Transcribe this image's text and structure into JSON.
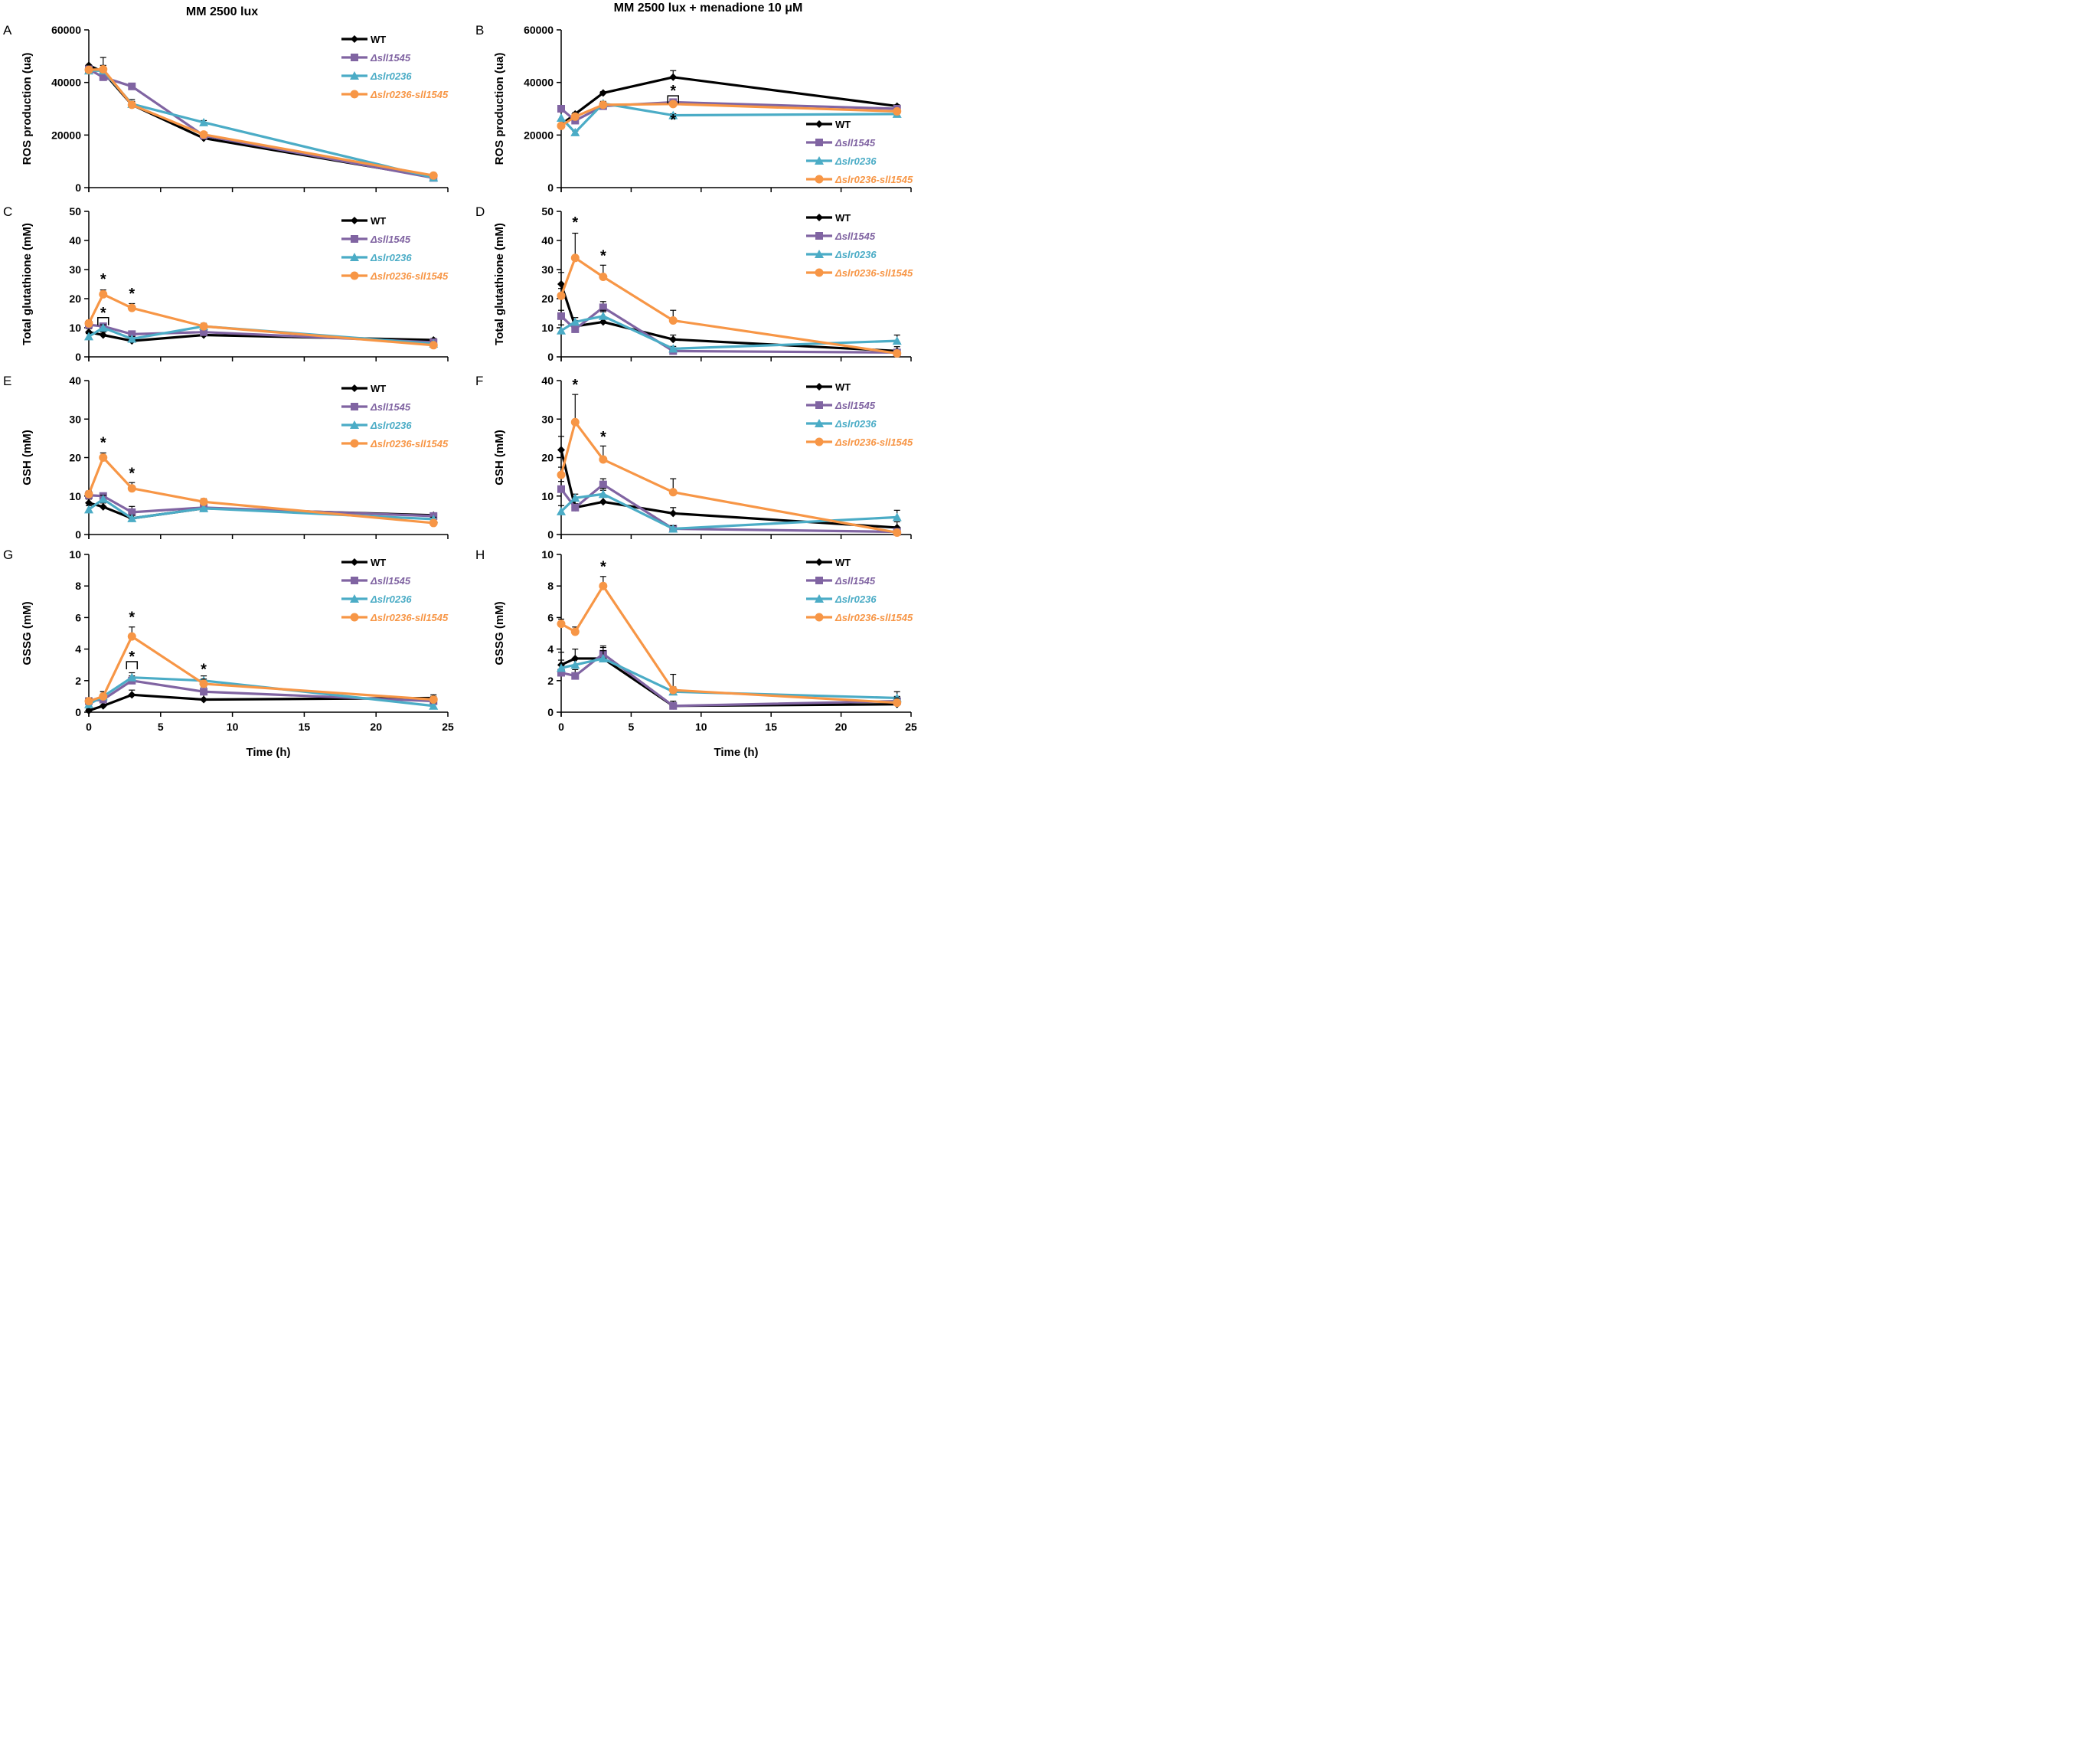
{
  "figure": {
    "column_titles": [
      "MM 2500 lux",
      "MM 2500 lux + menadione 10 μM"
    ],
    "x_axis_label": "Time (h)",
    "series_styles": [
      {
        "name": "WT",
        "color": "#000000",
        "marker": "diamond"
      },
      {
        "name": "Δsll1545",
        "color": "#8064A2",
        "marker": "square"
      },
      {
        "name": "Δslr0236",
        "color": "#4BACC6",
        "marker": "triangle"
      },
      {
        "name": "Δslr0236-sll1545",
        "color": "#F79646",
        "marker": "circle"
      }
    ]
  },
  "chart_data": [
    {
      "panel": "A",
      "type": "line",
      "title": "MM 2500 lux",
      "xlabel": "",
      "ylabel": "ROS production (ua)",
      "xlim": [
        0,
        25
      ],
      "ylim": [
        0,
        60000
      ],
      "xticks": [],
      "yticks": [
        0,
        20000,
        40000,
        60000
      ],
      "legend": "top-right",
      "x": [
        0,
        1,
        3,
        8,
        24
      ],
      "series": [
        {
          "name": "WT",
          "values": [
            46500,
            44000,
            31500,
            18800,
            4000
          ],
          "errors": [
            0,
            2500,
            2000,
            1000,
            600
          ]
        },
        {
          "name": "Δsll1545",
          "values": [
            45000,
            42000,
            38500,
            19800,
            3700
          ],
          "errors": [
            0,
            1000,
            800,
            900,
            400
          ]
        },
        {
          "name": "Δslr0236",
          "values": [
            44500,
            44500,
            31800,
            24800,
            3800
          ],
          "errors": [
            0,
            1200,
            1000,
            700,
            400
          ]
        },
        {
          "name": "Δslr0236-sll1545",
          "values": [
            44800,
            45000,
            31500,
            20200,
            4600
          ],
          "errors": [
            0,
            4500,
            1200,
            800,
            500
          ]
        }
      ],
      "annotations": []
    },
    {
      "panel": "B",
      "type": "line",
      "title": "MM 2500 lux + menadione 10 μM",
      "xlabel": "",
      "ylabel": "ROS production (ua)",
      "xlim": [
        0,
        25
      ],
      "ylim": [
        0,
        60000
      ],
      "xticks": [],
      "yticks": [
        0,
        20000,
        40000,
        60000
      ],
      "legend": "bottom-right",
      "x": [
        0,
        1,
        3,
        8,
        24
      ],
      "series": [
        {
          "name": "WT",
          "values": [
            24000,
            28000,
            36000,
            42000,
            31000
          ],
          "errors": [
            0,
            500,
            500,
            2500,
            500
          ]
        },
        {
          "name": "Δsll1545",
          "values": [
            30000,
            25500,
            31000,
            32500,
            30000
          ],
          "errors": [
            0,
            600,
            600,
            800,
            500
          ]
        },
        {
          "name": "Δslr0236",
          "values": [
            26500,
            21000,
            32000,
            27500,
            28000
          ],
          "errors": [
            0,
            500,
            800,
            600,
            500
          ]
        },
        {
          "name": "Δslr0236-sll1545",
          "values": [
            23500,
            27000,
            31500,
            31800,
            29000
          ],
          "errors": [
            0,
            700,
            700,
            700,
            500
          ]
        }
      ],
      "annotations": [
        {
          "text": "*",
          "x": 8,
          "y": 35500,
          "bracket": true
        },
        {
          "text": "*",
          "x": 8,
          "y": 24500
        }
      ]
    },
    {
      "panel": "C",
      "type": "line",
      "title": "",
      "xlabel": "",
      "ylabel": "Total glutathione (mM)",
      "xlim": [
        0,
        25
      ],
      "ylim": [
        0,
        50
      ],
      "xticks": [],
      "yticks": [
        0,
        10,
        20,
        30,
        40,
        50
      ],
      "legend": "top-right",
      "x": [
        0,
        1,
        3,
        8,
        24
      ],
      "series": [
        {
          "name": "WT",
          "values": [
            8.5,
            7.5,
            5.5,
            7.5,
            5.8
          ],
          "errors": [
            1.2,
            1.0,
            0.8,
            1.5,
            0.5
          ]
        },
        {
          "name": "Δsll1545",
          "values": [
            11.0,
            10.5,
            7.8,
            8.5,
            5.0
          ],
          "errors": [
            0.8,
            1.0,
            0.8,
            1.2,
            0.5
          ]
        },
        {
          "name": "Δslr0236",
          "values": [
            7.0,
            10.0,
            6.2,
            10.5,
            4.5
          ],
          "errors": [
            1.0,
            1.0,
            0.8,
            1.0,
            0.5
          ]
        },
        {
          "name": "Δslr0236-sll1545",
          "values": [
            11.5,
            21.5,
            16.8,
            10.5,
            4.0
          ],
          "errors": [
            1.0,
            1.5,
            1.5,
            0.8,
            0.5
          ]
        }
      ],
      "annotations": [
        {
          "text": "*",
          "x": 1,
          "y": 25.5
        },
        {
          "text": "*",
          "x": 1,
          "y": 14.0,
          "bracket": true
        },
        {
          "text": "*",
          "x": 3,
          "y": 20.5
        }
      ]
    },
    {
      "panel": "D",
      "type": "line",
      "title": "",
      "xlabel": "",
      "ylabel": "Total glutathione (mM)",
      "xlim": [
        0,
        25
      ],
      "ylim": [
        0,
        50
      ],
      "xticks": [],
      "yticks": [
        0,
        10,
        20,
        30,
        40,
        50
      ],
      "legend": "top-right",
      "x": [
        0,
        1,
        3,
        8,
        24
      ],
      "series": [
        {
          "name": "WT",
          "values": [
            25.0,
            10.5,
            12.0,
            6.0,
            2.0
          ],
          "errors": [
            4.0,
            2.0,
            3.5,
            1.5,
            1.5
          ]
        },
        {
          "name": "Δsll1545",
          "values": [
            14.0,
            9.5,
            17.0,
            2.0,
            1.5
          ],
          "errors": [
            2.0,
            1.5,
            2.0,
            0.8,
            0.5
          ]
        },
        {
          "name": "Δslr0236",
          "values": [
            9.0,
            12.0,
            14.0,
            2.8,
            5.5
          ],
          "errors": [
            2.0,
            1.5,
            2.0,
            0.8,
            2.0
          ]
        },
        {
          "name": "Δslr0236-sll1545",
          "values": [
            21.0,
            34.0,
            27.5,
            12.5,
            1.2
          ],
          "errors": [
            2.5,
            8.5,
            4.0,
            3.5,
            0.5
          ]
        }
      ],
      "annotations": [
        {
          "text": "*",
          "x": 1,
          "y": 45.0
        },
        {
          "text": "*",
          "x": 3,
          "y": 33.5
        }
      ]
    },
    {
      "panel": "E",
      "type": "line",
      "title": "",
      "xlabel": "",
      "ylabel": "GSH (mM)",
      "xlim": [
        0,
        25
      ],
      "ylim": [
        0,
        40
      ],
      "xticks": [],
      "yticks": [
        0,
        10,
        20,
        30,
        40
      ],
      "legend": "top-right",
      "x": [
        0,
        1,
        3,
        8,
        24
      ],
      "series": [
        {
          "name": "WT",
          "values": [
            8.2,
            7.2,
            4.2,
            6.8,
            5.0
          ],
          "errors": [
            1.0,
            1.0,
            0.8,
            1.5,
            0.5
          ]
        },
        {
          "name": "Δsll1545",
          "values": [
            10.2,
            10.0,
            5.8,
            7.0,
            4.8
          ],
          "errors": [
            0.8,
            0.8,
            1.5,
            1.0,
            0.5
          ]
        },
        {
          "name": "Δslr0236",
          "values": [
            6.5,
            9.2,
            4.2,
            6.8,
            4.0
          ],
          "errors": [
            1.0,
            1.0,
            0.8,
            1.0,
            0.5
          ]
        },
        {
          "name": "Δslr0236-sll1545",
          "values": [
            10.5,
            20.0,
            12.0,
            8.5,
            3.0
          ],
          "errors": [
            0.8,
            1.2,
            1.5,
            0.8,
            0.4
          ]
        }
      ],
      "annotations": [
        {
          "text": "*",
          "x": 1,
          "y": 23.0
        },
        {
          "text": "*",
          "x": 3,
          "y": 15.0
        }
      ]
    },
    {
      "panel": "F",
      "type": "line",
      "title": "",
      "xlabel": "",
      "ylabel": "GSH (mM)",
      "xlim": [
        0,
        25
      ],
      "ylim": [
        0,
        40
      ],
      "xticks": [],
      "yticks": [
        0,
        10,
        20,
        30,
        40
      ],
      "legend": "top-right",
      "x": [
        0,
        1,
        3,
        8,
        24
      ],
      "series": [
        {
          "name": "WT",
          "values": [
            22.0,
            7.0,
            8.5,
            5.5,
            1.8
          ],
          "errors": [
            3.5,
            2.5,
            3.0,
            1.5,
            1.5
          ]
        },
        {
          "name": "Δsll1545",
          "values": [
            11.8,
            7.0,
            13.0,
            1.5,
            0.7
          ],
          "errors": [
            2.0,
            1.0,
            1.5,
            0.8,
            0.3
          ]
        },
        {
          "name": "Δslr0236",
          "values": [
            6.0,
            9.5,
            10.5,
            1.5,
            4.5
          ],
          "errors": [
            1.5,
            1.0,
            1.5,
            0.8,
            1.8
          ]
        },
        {
          "name": "Δslr0236-sll1545",
          "values": [
            15.5,
            29.2,
            19.5,
            11.0,
            0.5
          ],
          "errors": [
            2.0,
            7.2,
            3.5,
            3.5,
            0.5
          ]
        }
      ],
      "annotations": [
        {
          "text": "*",
          "x": 1,
          "y": 38.0
        },
        {
          "text": "*",
          "x": 3,
          "y": 24.5
        }
      ]
    },
    {
      "panel": "G",
      "type": "line",
      "title": "",
      "xlabel": "Time (h)",
      "ylabel": "GSSG (mM)",
      "xlim": [
        0,
        25
      ],
      "ylim": [
        0,
        10
      ],
      "xticks": [
        0,
        5,
        10,
        15,
        20,
        25
      ],
      "yticks": [
        0,
        2,
        4,
        6,
        8,
        10
      ],
      "legend": "top-right",
      "x": [
        0,
        1,
        3,
        8,
        24
      ],
      "series": [
        {
          "name": "WT",
          "values": [
            0.1,
            0.4,
            1.1,
            0.8,
            0.9
          ],
          "errors": [
            0.1,
            0.2,
            0.3,
            0.3,
            0.2
          ]
        },
        {
          "name": "Δsll1545",
          "values": [
            0.7,
            0.8,
            2.0,
            1.3,
            0.7
          ],
          "errors": [
            0.2,
            0.3,
            0.3,
            0.3,
            0.2
          ]
        },
        {
          "name": "Δslr0236",
          "values": [
            0.5,
            1.0,
            2.2,
            2.0,
            0.4
          ],
          "errors": [
            0.2,
            0.3,
            0.3,
            0.3,
            0.2
          ]
        },
        {
          "name": "Δslr0236-sll1545",
          "values": [
            0.7,
            1.0,
            4.8,
            1.8,
            0.8
          ],
          "errors": [
            0.2,
            0.3,
            0.6,
            0.3,
            0.2
          ]
        }
      ],
      "annotations": [
        {
          "text": "*",
          "x": 3,
          "y": 5.8
        },
        {
          "text": "*",
          "x": 3,
          "y": 3.3,
          "bracket": true
        },
        {
          "text": "*",
          "x": 8,
          "y": 2.5
        }
      ]
    },
    {
      "panel": "H",
      "type": "line",
      "title": "",
      "xlabel": "Time (h)",
      "ylabel": "GSSG (mM)",
      "xlim": [
        0,
        25
      ],
      "ylim": [
        0,
        10
      ],
      "xticks": [
        0,
        5,
        10,
        15,
        20,
        25
      ],
      "yticks": [
        0,
        2,
        4,
        6,
        8,
        10
      ],
      "legend": "top-right",
      "x": [
        0,
        1,
        3,
        8,
        24
      ],
      "series": [
        {
          "name": "WT",
          "values": [
            3.0,
            3.4,
            3.4,
            0.4,
            0.5
          ],
          "errors": [
            0.8,
            0.6,
            0.8,
            0.3,
            0.3
          ]
        },
        {
          "name": "Δsll1545",
          "values": [
            2.5,
            2.3,
            3.7,
            0.4,
            0.7
          ],
          "errors": [
            0.5,
            0.4,
            0.4,
            0.2,
            0.3
          ]
        },
        {
          "name": "Δslr0236",
          "values": [
            2.8,
            3.0,
            3.4,
            1.3,
            0.9
          ],
          "errors": [
            0.5,
            0.4,
            0.5,
            0.3,
            0.4
          ]
        },
        {
          "name": "Δslr0236-sll1545",
          "values": [
            5.6,
            5.1,
            8.0,
            1.4,
            0.6
          ],
          "errors": [
            0.3,
            0.3,
            0.6,
            1.0,
            0.3
          ]
        }
      ],
      "annotations": [
        {
          "text": "*",
          "x": 3,
          "y": 9.0
        }
      ]
    }
  ]
}
